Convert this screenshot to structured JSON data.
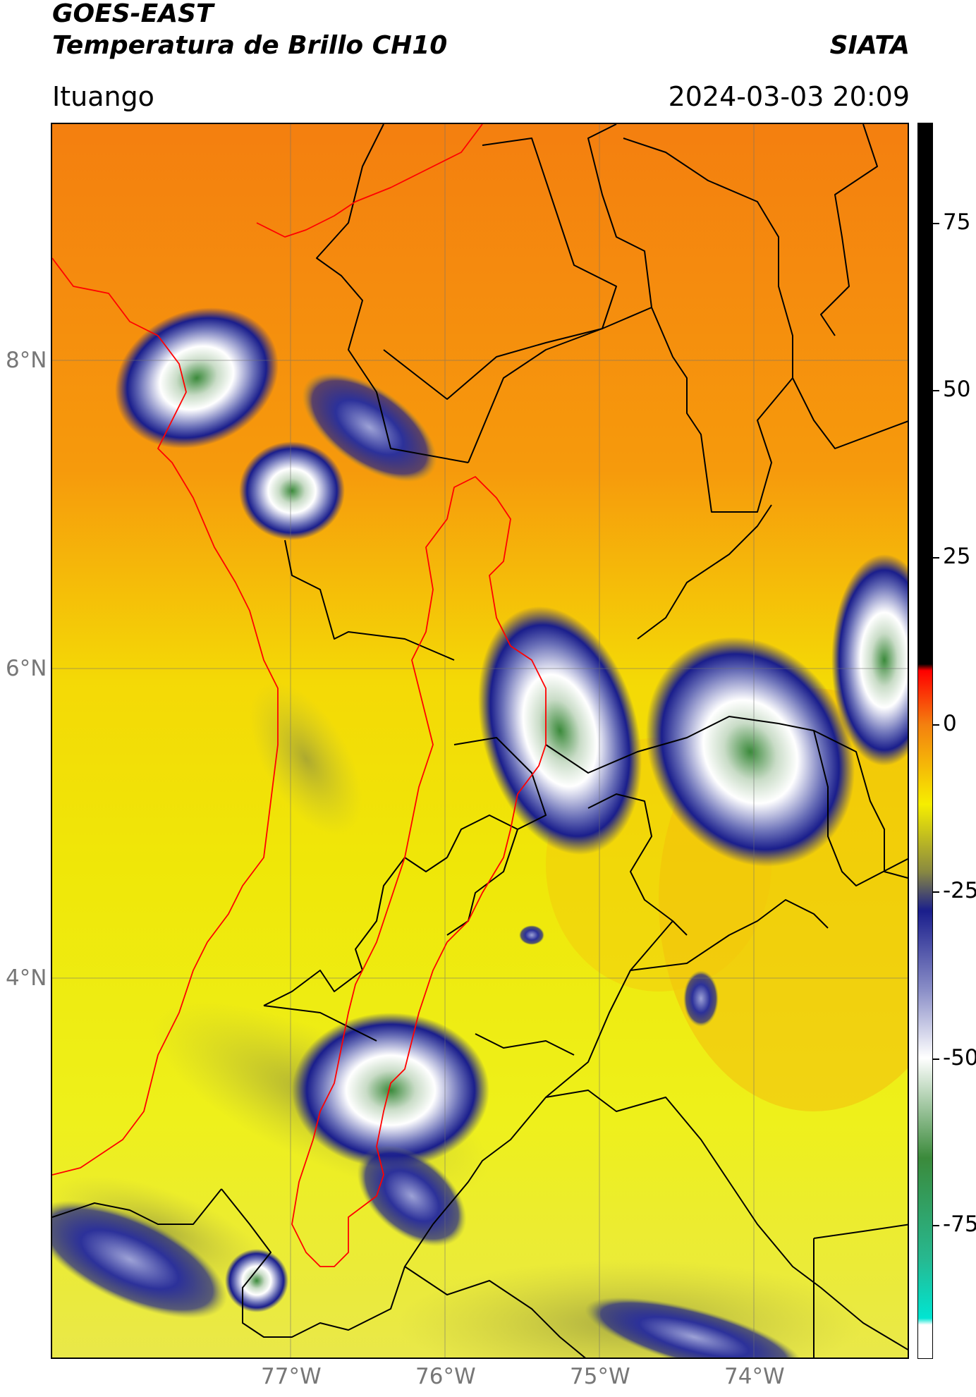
{
  "header": {
    "title_line1": "GOES-EAST",
    "title_line2": "Temperatura de Brillo CH10",
    "org": "SIATA",
    "location": "Ituango",
    "datetime": "2024-03-03 20:09"
  },
  "map": {
    "lat_labels": [
      "8°N",
      "6°N",
      "4°N"
    ],
    "lon_labels": [
      "77°W",
      "76°W",
      "75°W",
      "74°W"
    ],
    "gridlines": true,
    "colors": {
      "warm": "#f47f0f",
      "mid": "#f6ee00",
      "cold": "#1a1e8c",
      "coldest": "#3b8a3b",
      "department_border": "#000000",
      "region_border": "#ff0000"
    }
  },
  "colorbar": {
    "ticks": [
      "75",
      "50",
      "25",
      "0",
      "-25",
      "-50",
      "-75"
    ],
    "range": [
      -95,
      90
    ],
    "stops": [
      "#ffffff",
      "#00e5d2",
      "#3b8a3b",
      "#ffffff",
      "#1a1e8c",
      "#f6ee00",
      "#f47f0f",
      "#ff0000",
      "#000000"
    ]
  }
}
